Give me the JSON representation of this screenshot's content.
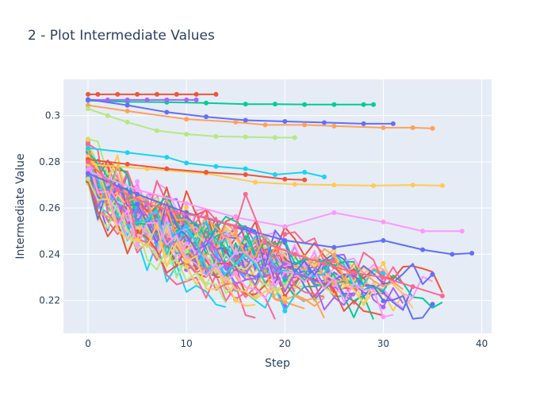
{
  "chart_data": {
    "type": "line",
    "title": "2 - Plot Intermediate Values",
    "xlabel": "Step",
    "ylabel": "Intermediate Value",
    "xlim": [
      -2.5,
      41
    ],
    "ylim": [
      0.2058,
      0.3157
    ],
    "xticks": [
      0,
      10,
      20,
      30,
      40
    ],
    "yticks": [
      0.22,
      0.24,
      0.26,
      0.28,
      0.3
    ],
    "ytick_labels": [
      "0.22",
      "0.24",
      "0.26",
      "0.28",
      "0.3"
    ],
    "grid": true,
    "legend": "none",
    "plot_background": "#e5ecf6",
    "colors": [
      "#636efa",
      "#EF553B",
      "#00cc96",
      "#ab63fa",
      "#FFA15A",
      "#19d3f3",
      "#FF6692",
      "#B6E880",
      "#FF97FF",
      "#FECB52"
    ],
    "series": [
      {
        "color": "#EF553B",
        "x": [
          0,
          1,
          3,
          5,
          7,
          9,
          11,
          13
        ],
        "y": [
          0.3092,
          0.3092,
          0.3092,
          0.3092,
          0.3092,
          0.3092,
          0.3092,
          0.3092
        ],
        "markers_at": "all"
      },
      {
        "color": "#00cc96",
        "x": [
          0,
          4,
          8,
          12,
          16,
          19,
          22,
          25,
          28,
          29
        ],
        "y": [
          0.3065,
          0.306,
          0.3058,
          0.3055,
          0.305,
          0.305,
          0.3048,
          0.3048,
          0.3048,
          0.3048
        ],
        "markers_at": "sparse"
      },
      {
        "color": "#ab63fa",
        "x": [
          0,
          2,
          4,
          6,
          8,
          10,
          11
        ],
        "y": [
          0.3068,
          0.3068,
          0.3068,
          0.3068,
          0.3068,
          0.3068,
          0.3068
        ],
        "markers_at": "all"
      },
      {
        "color": "#636efa",
        "x": [
          0,
          4,
          8,
          12,
          16,
          20,
          24,
          28,
          31
        ],
        "y": [
          0.307,
          0.3045,
          0.3015,
          0.2995,
          0.298,
          0.2975,
          0.297,
          0.2965,
          0.2965
        ],
        "markers_at": "sparse"
      },
      {
        "color": "#FFA15A",
        "x": [
          0,
          4,
          10,
          15,
          18,
          22,
          25,
          30,
          33,
          35
        ],
        "y": [
          0.3045,
          0.302,
          0.2985,
          0.2972,
          0.296,
          0.296,
          0.2955,
          0.2948,
          0.2948,
          0.2945
        ],
        "markers_at": "sparse"
      },
      {
        "color": "#B6E880",
        "x": [
          0,
          2,
          4,
          7,
          10,
          13,
          16,
          19,
          21
        ],
        "y": [
          0.303,
          0.3,
          0.2972,
          0.2935,
          0.292,
          0.291,
          0.2908,
          0.2905,
          0.2905
        ],
        "markers_at": "sparse"
      },
      {
        "color": "#19d3f3",
        "x": [
          0,
          4,
          8,
          10,
          13,
          16,
          19,
          22,
          24
        ],
        "y": [
          0.286,
          0.284,
          0.282,
          0.2795,
          0.278,
          0.277,
          0.2745,
          0.2755,
          0.2735
        ],
        "markers_at": "sparse"
      },
      {
        "color": "#FECB52",
        "x": [
          0,
          6,
          12,
          17,
          21,
          25,
          29,
          33,
          36
        ],
        "y": [
          0.279,
          0.277,
          0.275,
          0.2712,
          0.2703,
          0.27,
          0.2697,
          0.27,
          0.2697
        ],
        "markers_at": "sparse"
      },
      {
        "color": "#EF553B",
        "x": [
          0,
          4,
          8,
          12,
          16,
          20,
          22
        ],
        "y": [
          0.281,
          0.279,
          0.277,
          0.2755,
          0.2745,
          0.2725,
          0.2722
        ],
        "markers_at": "sparse"
      },
      {
        "color": "#FF97FF",
        "x": [
          0,
          5,
          10,
          15,
          20,
          25,
          30,
          34,
          38
        ],
        "y": [
          0.276,
          0.268,
          0.262,
          0.256,
          0.252,
          0.258,
          0.254,
          0.25,
          0.25
        ],
        "markers_at": "sparse"
      },
      {
        "color": "#636efa",
        "x": [
          0,
          5,
          10,
          15,
          20,
          25,
          30,
          34,
          37,
          39
        ],
        "y": [
          0.275,
          0.266,
          0.258,
          0.252,
          0.246,
          0.243,
          0.246,
          0.242,
          0.24,
          0.2405
        ],
        "markers_at": "sparse"
      },
      {
        "color": "#FF6692",
        "x": [
          0,
          3,
          6,
          9,
          12,
          15,
          16,
          18,
          21,
          24,
          27,
          30,
          33,
          36
        ],
        "y": [
          0.28,
          0.268,
          0.262,
          0.258,
          0.256,
          0.252,
          0.266,
          0.245,
          0.24,
          0.236,
          0.232,
          0.23,
          0.226,
          0.222
        ],
        "markers_at": "sparse"
      }
    ],
    "noise_bundle": {
      "description": "many overlapping jagged trial curves between the top of the band and about 0.22",
      "count": 60,
      "x_end_min": 14,
      "x_end_max": 38,
      "start_range": [
        0.27,
        0.29
      ],
      "end_range": [
        0.215,
        0.232
      ]
    }
  }
}
